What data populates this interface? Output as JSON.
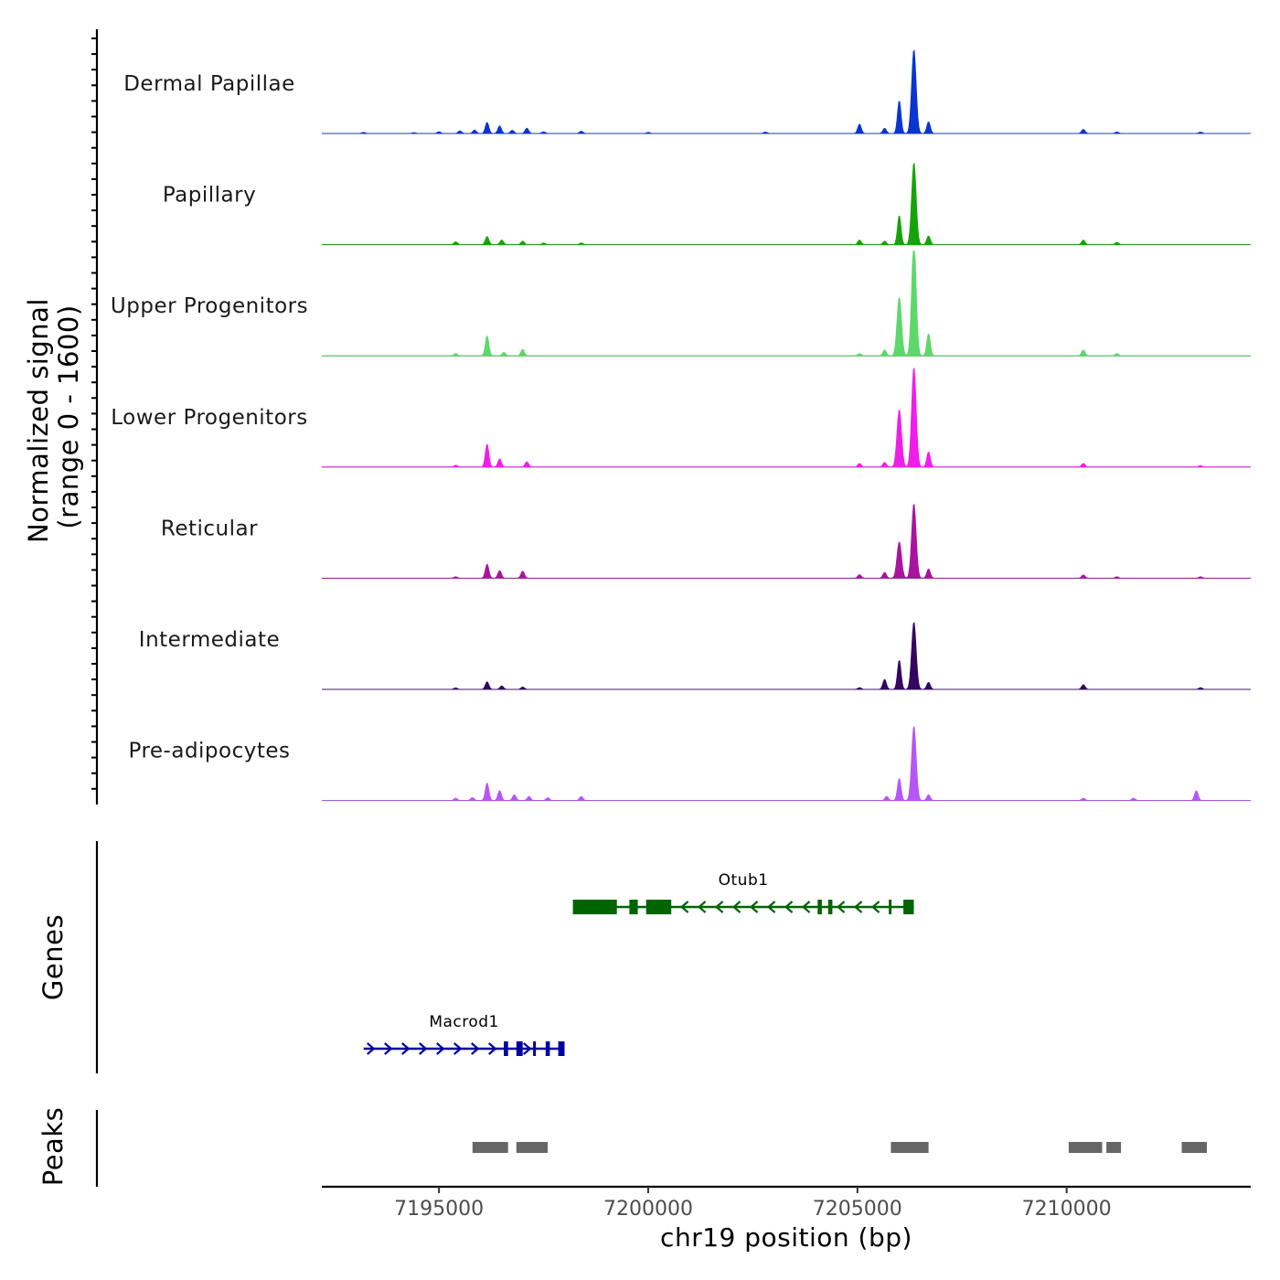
{
  "chart_data": {
    "type": "area",
    "title": "",
    "chromosome": "chr19",
    "xlabel": "chr19 position (bp)",
    "ylabel_line1": "Normalized signal",
    "ylabel_line2": "(range 0 - 1600)",
    "y_range": [
      0,
      1600
    ],
    "xlim": [
      7192200,
      7214400
    ],
    "x_ticks": [
      7195000,
      7200000,
      7205000,
      7210000
    ],
    "x_tick_labels": [
      "7195000",
      "7200000",
      "7205000",
      "7210000"
    ],
    "series": [
      {
        "name": "Dermal Papillae",
        "color": "#0a35d0",
        "peaks": [
          {
            "x": 7193200,
            "y": 20
          },
          {
            "x": 7194400,
            "y": 15
          },
          {
            "x": 7195000,
            "y": 30
          },
          {
            "x": 7195500,
            "y": 45
          },
          {
            "x": 7195850,
            "y": 60
          },
          {
            "x": 7196150,
            "y": 190
          },
          {
            "x": 7196450,
            "y": 130
          },
          {
            "x": 7196750,
            "y": 55
          },
          {
            "x": 7197100,
            "y": 90
          },
          {
            "x": 7197500,
            "y": 30
          },
          {
            "x": 7198400,
            "y": 40
          },
          {
            "x": 7200000,
            "y": 20
          },
          {
            "x": 7202800,
            "y": 25
          },
          {
            "x": 7205050,
            "y": 160
          },
          {
            "x": 7205650,
            "y": 90
          },
          {
            "x": 7206000,
            "y": 560
          },
          {
            "x": 7206350,
            "y": 1430
          },
          {
            "x": 7206700,
            "y": 200
          },
          {
            "x": 7210400,
            "y": 70
          },
          {
            "x": 7211200,
            "y": 25
          },
          {
            "x": 7213200,
            "y": 25
          }
        ]
      },
      {
        "name": "Papillary",
        "color": "#15a30a",
        "peaks": [
          {
            "x": 7195400,
            "y": 50
          },
          {
            "x": 7196150,
            "y": 140
          },
          {
            "x": 7196500,
            "y": 80
          },
          {
            "x": 7197000,
            "y": 60
          },
          {
            "x": 7197500,
            "y": 30
          },
          {
            "x": 7198400,
            "y": 30
          },
          {
            "x": 7205050,
            "y": 80
          },
          {
            "x": 7205650,
            "y": 60
          },
          {
            "x": 7206000,
            "y": 500
          },
          {
            "x": 7206350,
            "y": 1400
          },
          {
            "x": 7206700,
            "y": 150
          },
          {
            "x": 7210400,
            "y": 80
          },
          {
            "x": 7211200,
            "y": 40
          }
        ]
      },
      {
        "name": "Upper Progenitors",
        "color": "#5cd96a",
        "peaks": [
          {
            "x": 7195400,
            "y": 40
          },
          {
            "x": 7196150,
            "y": 340
          },
          {
            "x": 7196550,
            "y": 60
          },
          {
            "x": 7197000,
            "y": 110
          },
          {
            "x": 7205050,
            "y": 40
          },
          {
            "x": 7205650,
            "y": 100
          },
          {
            "x": 7206000,
            "y": 1000
          },
          {
            "x": 7206350,
            "y": 1950
          },
          {
            "x": 7206700,
            "y": 380
          },
          {
            "x": 7210400,
            "y": 100
          },
          {
            "x": 7211200,
            "y": 40
          }
        ]
      },
      {
        "name": "Lower Progenitors",
        "color": "#f01ee8",
        "peaks": [
          {
            "x": 7195400,
            "y": 30
          },
          {
            "x": 7196150,
            "y": 390
          },
          {
            "x": 7196450,
            "y": 140
          },
          {
            "x": 7197100,
            "y": 90
          },
          {
            "x": 7205050,
            "y": 60
          },
          {
            "x": 7205650,
            "y": 80
          },
          {
            "x": 7206000,
            "y": 980
          },
          {
            "x": 7206350,
            "y": 1700
          },
          {
            "x": 7206700,
            "y": 260
          },
          {
            "x": 7210400,
            "y": 60
          },
          {
            "x": 7213200,
            "y": 25
          }
        ]
      },
      {
        "name": "Reticular",
        "color": "#a9149e",
        "peaks": [
          {
            "x": 7195400,
            "y": 25
          },
          {
            "x": 7196150,
            "y": 240
          },
          {
            "x": 7196450,
            "y": 130
          },
          {
            "x": 7197000,
            "y": 120
          },
          {
            "x": 7205050,
            "y": 60
          },
          {
            "x": 7205650,
            "y": 100
          },
          {
            "x": 7206000,
            "y": 620
          },
          {
            "x": 7206350,
            "y": 1270
          },
          {
            "x": 7206700,
            "y": 160
          },
          {
            "x": 7210400,
            "y": 55
          },
          {
            "x": 7211200,
            "y": 25
          },
          {
            "x": 7213200,
            "y": 25
          }
        ]
      },
      {
        "name": "Intermediate",
        "color": "#330760",
        "peaks": [
          {
            "x": 7195400,
            "y": 25
          },
          {
            "x": 7196150,
            "y": 130
          },
          {
            "x": 7196500,
            "y": 60
          },
          {
            "x": 7197000,
            "y": 40
          },
          {
            "x": 7205050,
            "y": 30
          },
          {
            "x": 7205650,
            "y": 170
          },
          {
            "x": 7206000,
            "y": 500
          },
          {
            "x": 7206350,
            "y": 1150
          },
          {
            "x": 7206700,
            "y": 120
          },
          {
            "x": 7210400,
            "y": 80
          },
          {
            "x": 7213200,
            "y": 30
          }
        ]
      },
      {
        "name": "Pre-adipocytes",
        "color": "#b656f4",
        "peaks": [
          {
            "x": 7195400,
            "y": 40
          },
          {
            "x": 7195800,
            "y": 50
          },
          {
            "x": 7196150,
            "y": 300
          },
          {
            "x": 7196450,
            "y": 170
          },
          {
            "x": 7196800,
            "y": 100
          },
          {
            "x": 7197150,
            "y": 70
          },
          {
            "x": 7197600,
            "y": 50
          },
          {
            "x": 7198400,
            "y": 70
          },
          {
            "x": 7205700,
            "y": 70
          },
          {
            "x": 7206000,
            "y": 380
          },
          {
            "x": 7206350,
            "y": 1270
          },
          {
            "x": 7206700,
            "y": 100
          },
          {
            "x": 7210400,
            "y": 40
          },
          {
            "x": 7211600,
            "y": 40
          },
          {
            "x": 7213100,
            "y": 170
          }
        ]
      }
    ],
    "genes": [
      {
        "name": "Otub1",
        "strand": "-",
        "color": "#006400",
        "start": 7198200,
        "end": 7206350,
        "exons": [
          [
            7198200,
            7199250
          ],
          [
            7199550,
            7199750
          ],
          [
            7199950,
            7200550
          ],
          [
            7204050,
            7204150
          ],
          [
            7204300,
            7204400
          ],
          [
            7205750,
            7205800
          ],
          [
            7206100,
            7206350
          ]
        ]
      },
      {
        "name": "Macrod1",
        "strand": "+",
        "color": "#0000a0",
        "start": 7193200,
        "end": 7198000,
        "exons": [
          [
            7196550,
            7196650
          ],
          [
            7196850,
            7197000
          ],
          [
            7197250,
            7197300
          ],
          [
            7197550,
            7197650
          ],
          [
            7197850,
            7198000
          ]
        ]
      }
    ],
    "peaks_track": [
      [
        7195800,
        7196650
      ],
      [
        7196850,
        7197600
      ],
      [
        7205800,
        7206700
      ],
      [
        7210050,
        7210850
      ],
      [
        7210950,
        7211300
      ],
      [
        7212750,
        7213350
      ]
    ],
    "peaks_color": "#666666",
    "track_labels": {
      "genes": "Genes",
      "peaks": "Peaks"
    }
  }
}
